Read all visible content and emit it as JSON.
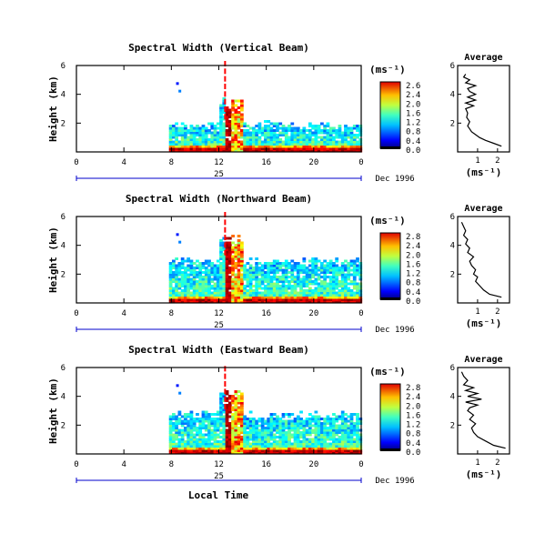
{
  "figure": {
    "xlabel": "Local Time",
    "date_label": "Dec 1996",
    "day_label": "25",
    "x_ticks": [
      "0",
      "4",
      "8",
      "12",
      "16",
      "20",
      "0"
    ],
    "y_ticks": [
      "6",
      "4",
      "2"
    ],
    "colorbar_unit": "(ms⁻¹)",
    "avg_title": "Average",
    "avg_xlabel": "(ms⁻¹)"
  },
  "chart_data": [
    {
      "type": "heatmap",
      "title": "Spectral Width (Vertical Beam)",
      "ylabel": "Height (km)",
      "xlabel": "",
      "xlim": [
        0,
        24
      ],
      "ylim": [
        0.3,
        6
      ],
      "colorbar": {
        "unit": "(ms⁻¹)",
        "labels": [
          "2.6",
          "2.4",
          "2.0",
          "1.6",
          "1.2",
          "0.8",
          "0.4",
          "0.0"
        ]
      },
      "average_profile": {
        "title": "Average",
        "xlabel": "(ms⁻¹)",
        "x_ticks": [
          "1",
          "2"
        ],
        "y_ticks": [
          "6",
          "4",
          "2"
        ],
        "xlim": [
          0,
          2.6
        ],
        "ylim": [
          0,
          6
        ],
        "x": [
          2.2,
          1.8,
          1.4,
          1.1,
          0.9,
          0.7,
          0.6,
          0.5,
          0.6,
          0.45,
          0.5,
          0.4,
          0.8,
          0.4,
          0.9,
          0.5,
          0.9,
          0.6,
          0.5,
          0.9,
          0.4,
          0.6,
          0.3,
          0.4
        ],
        "y": [
          0.4,
          0.6,
          0.8,
          1.0,
          1.2,
          1.4,
          1.6,
          1.8,
          2.1,
          2.4,
          2.7,
          3.0,
          3.2,
          3.4,
          3.6,
          3.8,
          4.0,
          4.2,
          4.4,
          4.6,
          4.8,
          5.0,
          5.2,
          5.4
        ]
      }
    },
    {
      "type": "heatmap",
      "title": "Spectral Width (Northward Beam)",
      "ylabel": "Height (km)",
      "xlabel": "",
      "xlim": [
        0,
        24
      ],
      "ylim": [
        0.3,
        6
      ],
      "colorbar": {
        "unit": "(ms⁻¹)",
        "labels": [
          "2.8",
          "2.4",
          "2.0",
          "1.6",
          "1.2",
          "0.8",
          "0.4",
          "0.0"
        ]
      },
      "average_profile": {
        "title": "Average",
        "xlabel": "(ms⁻¹)",
        "x_ticks": [
          "1",
          "2"
        ],
        "y_ticks": [
          "6",
          "4",
          "2"
        ],
        "xlim": [
          0,
          2.6
        ],
        "ylim": [
          0,
          6
        ],
        "x": [
          2.2,
          1.6,
          1.3,
          1.1,
          0.9,
          1.0,
          0.8,
          0.9,
          0.7,
          0.6,
          0.8,
          0.5,
          0.6,
          0.4,
          0.5,
          0.3,
          0.4,
          0.3,
          0.2
        ],
        "y": [
          0.4,
          0.6,
          0.9,
          1.2,
          1.5,
          1.8,
          2.0,
          2.3,
          2.6,
          2.9,
          3.2,
          3.5,
          3.8,
          4.1,
          4.4,
          4.7,
          5.0,
          5.3,
          5.6
        ]
      }
    },
    {
      "type": "heatmap",
      "title": "Spectral Width (Eastward Beam)",
      "ylabel": "Height (km)",
      "xlabel": "Local Time",
      "xlim": [
        0,
        24
      ],
      "ylim": [
        0.3,
        6
      ],
      "colorbar": {
        "unit": "(ms⁻¹)",
        "labels": [
          "2.8",
          "2.4",
          "2.0",
          "1.6",
          "1.2",
          "0.8",
          "0.4",
          "0.0"
        ]
      },
      "average_profile": {
        "title": "Average",
        "xlabel": "(ms⁻¹)",
        "x_ticks": [
          "1",
          "2"
        ],
        "y_ticks": [
          "6",
          "4",
          "2"
        ],
        "xlim": [
          0,
          2.6
        ],
        "ylim": [
          0,
          6
        ],
        "x": [
          2.4,
          1.8,
          1.4,
          1.0,
          0.8,
          0.7,
          0.9,
          0.6,
          0.8,
          0.5,
          0.6,
          1.0,
          0.4,
          1.2,
          0.5,
          1.0,
          0.4,
          0.8,
          0.3,
          0.5,
          0.3,
          0.2
        ],
        "y": [
          0.4,
          0.6,
          0.9,
          1.2,
          1.5,
          1.8,
          2.1,
          2.4,
          2.7,
          3.0,
          3.2,
          3.4,
          3.6,
          3.8,
          4.0,
          4.2,
          4.4,
          4.6,
          4.8,
          5.1,
          5.4,
          5.7
        ]
      }
    }
  ]
}
